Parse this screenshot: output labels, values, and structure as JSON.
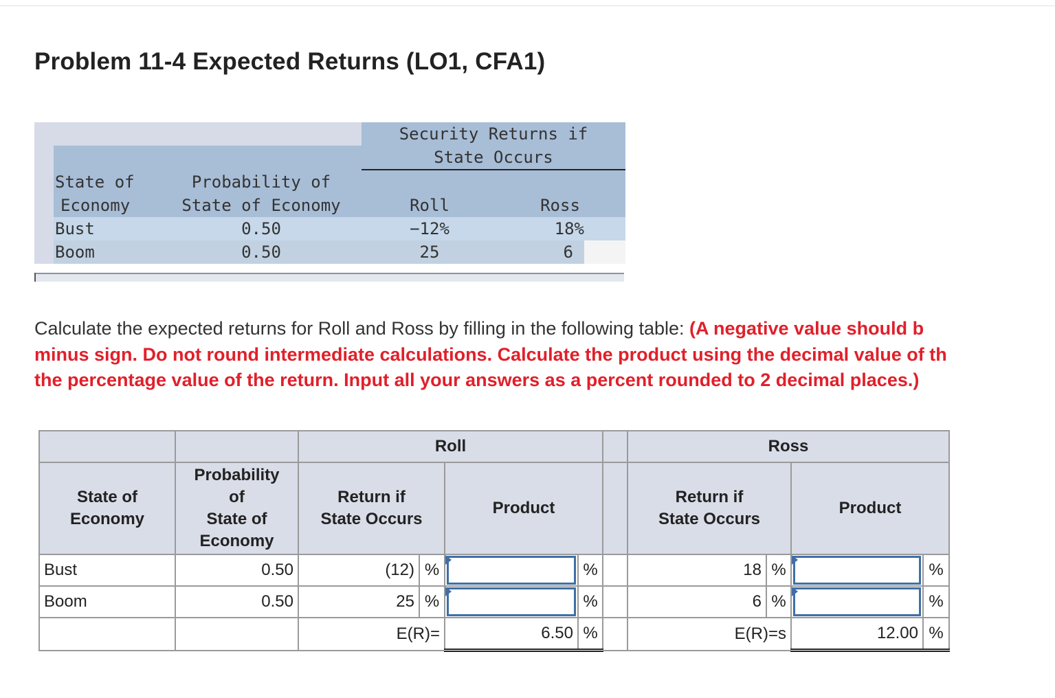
{
  "title": "Problem 11-4 Expected Returns (LO1, CFA1)",
  "given_table": {
    "group_header_line1": "Security Returns if",
    "group_header_line2": "State Occurs",
    "col_state_line1": "State of",
    "col_state_line2": "Economy",
    "col_prob_line1": "Probability of",
    "col_prob_line2": "State of Economy",
    "col_roll": "Roll",
    "col_ross": "Ross",
    "rows": [
      {
        "state": "Bust",
        "prob": "0.50",
        "roll": "−12%",
        "ross": "18%"
      },
      {
        "state": "Boom",
        "prob": "0.50",
        "roll": "25",
        "ross": "6"
      }
    ]
  },
  "instructions": {
    "plain": "Calculate the expected returns for Roll and Ross by filling in the following table: ",
    "red_line1": "(A negative value should b",
    "red_line2": "minus sign. Do not round intermediate calculations. Calculate the product using the decimal value of th",
    "red_line3": "the percentage value of the return. Input all your answers as a percent rounded to 2 decimal places.)"
  },
  "worksheet": {
    "roll_header": "Roll",
    "ross_header": "Ross",
    "col_state_line1": "State of",
    "col_state_line2": "Economy",
    "col_prob_line1": "Probability",
    "col_prob_line2": "of",
    "col_prob_line3": "State of",
    "col_prob_line4": "Economy",
    "col_return_line1": "Return if",
    "col_return_line2": "State Occurs",
    "col_product": "Product",
    "percent": "%",
    "rows": [
      {
        "state": "Bust",
        "prob": "0.50",
        "roll_return": "(12)",
        "ross_return": "18"
      },
      {
        "state": "Boom",
        "prob": "0.50",
        "roll_return": "25",
        "ross_return": "6"
      }
    ],
    "roll_er_label": "E(R)=",
    "roll_er_value": "6.50",
    "ross_er_label": "E(R)=s",
    "ross_er_value": "12.00"
  }
}
